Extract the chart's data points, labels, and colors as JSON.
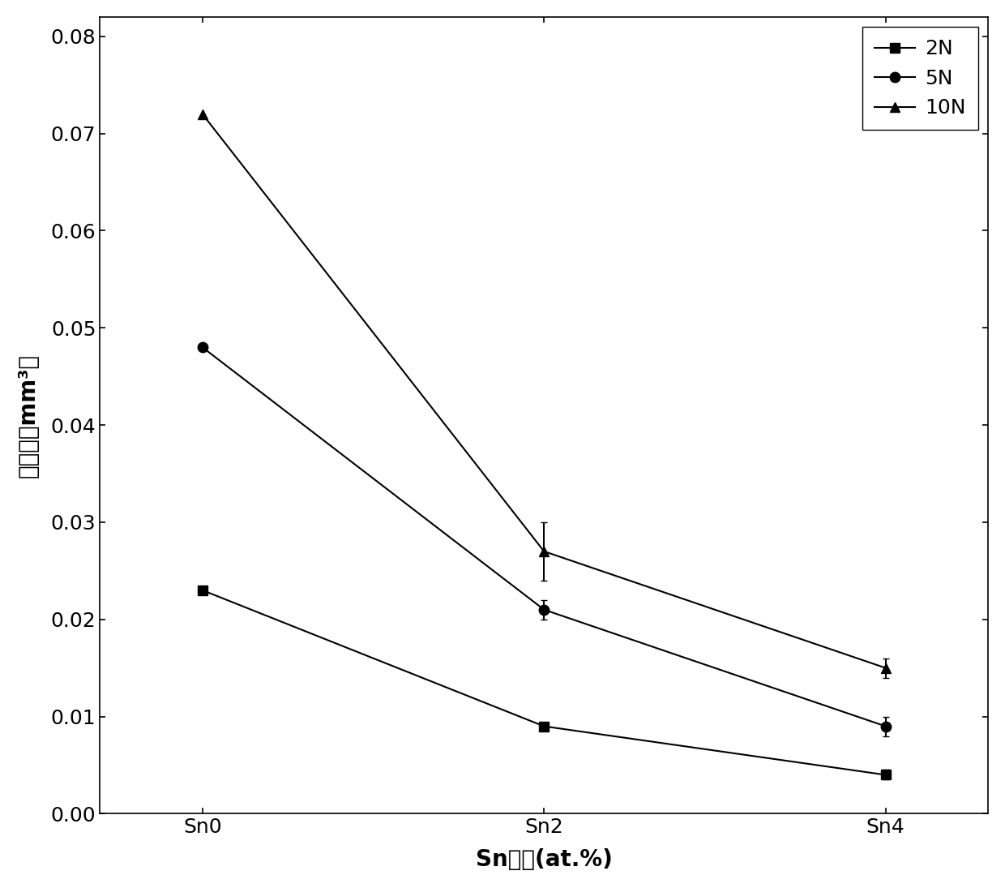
{
  "x_labels": [
    "Sn0",
    "Sn2",
    "Sn4"
  ],
  "x_positions": [
    0,
    1,
    2
  ],
  "series": [
    {
      "label": "2N",
      "values": [
        0.023,
        0.009,
        0.004
      ],
      "yerr": [
        0.0,
        0.0,
        0.0005
      ],
      "marker": "s",
      "color": "#000000",
      "linestyle": "-"
    },
    {
      "label": "5N",
      "values": [
        0.048,
        0.021,
        0.009
      ],
      "yerr": [
        0.0,
        0.001,
        0.001
      ],
      "marker": "o",
      "color": "#000000",
      "linestyle": "-"
    },
    {
      "label": "10N",
      "values": [
        0.072,
        0.027,
        0.015
      ],
      "yerr": [
        0.0,
        0.003,
        0.001
      ],
      "marker": "^",
      "color": "#000000",
      "linestyle": "-"
    }
  ],
  "xlabel": "Sn含量(at.%)",
  "ylabel": "磨损量（mm³）",
  "ylim": [
    0.0,
    0.082
  ],
  "yticks": [
    0.0,
    0.01,
    0.02,
    0.03,
    0.04,
    0.05,
    0.06,
    0.07,
    0.08
  ],
  "background_color": "#ffffff",
  "marker_size": 9,
  "linewidth": 1.5,
  "capsize": 3
}
